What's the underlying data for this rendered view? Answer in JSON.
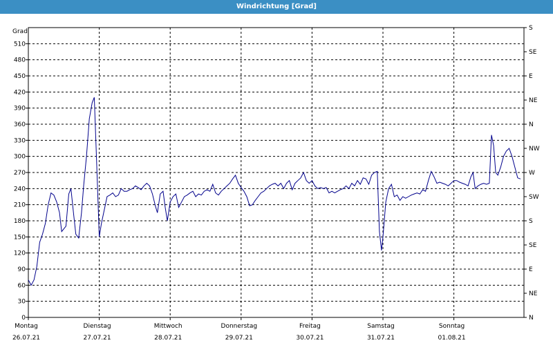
{
  "chart_data": {
    "type": "line",
    "title": "Windrichtung [Grad]",
    "ylabel": "Grad",
    "ylim": [
      0,
      540
    ],
    "yticks": [
      0,
      30,
      60,
      90,
      120,
      150,
      180,
      210,
      240,
      270,
      300,
      330,
      360,
      390,
      420,
      450,
      480,
      510
    ],
    "y2ticks": [
      {
        "value": 0,
        "label": "N"
      },
      {
        "value": 45,
        "label": "NE"
      },
      {
        "value": 90,
        "label": "E"
      },
      {
        "value": 135,
        "label": "SE"
      },
      {
        "value": 180,
        "label": "S"
      },
      {
        "value": 225,
        "label": "SW"
      },
      {
        "value": 270,
        "label": "W"
      },
      {
        "value": 315,
        "label": "NW"
      },
      {
        "value": 360,
        "label": "N"
      },
      {
        "value": 405,
        "label": "NE"
      },
      {
        "value": 450,
        "label": "E"
      },
      {
        "value": 495,
        "label": "SE"
      },
      {
        "value": 540,
        "label": "S"
      }
    ],
    "xlim": [
      0,
      7
    ],
    "xticks": [
      {
        "day": "Montag",
        "date": "26.07.21"
      },
      {
        "day": "Dienstag",
        "date": "27.07.21"
      },
      {
        "day": "Mittwoch",
        "date": "28.07.21"
      },
      {
        "day": "Donnerstag",
        "date": "29.07.21"
      },
      {
        "day": "Freitag",
        "date": "30.07.21"
      },
      {
        "day": "Samstag",
        "date": "31.07.21"
      },
      {
        "day": "Sonntag",
        "date": "01.08.21"
      }
    ],
    "grid": true,
    "line_color": "#00008b",
    "series": [
      {
        "points": [
          [
            0.0,
            70
          ],
          [
            0.04,
            60
          ],
          [
            0.08,
            70
          ],
          [
            0.12,
            95
          ],
          [
            0.16,
            140
          ],
          [
            0.2,
            155
          ],
          [
            0.24,
            175
          ],
          [
            0.28,
            210
          ],
          [
            0.32,
            232
          ],
          [
            0.36,
            228
          ],
          [
            0.4,
            215
          ],
          [
            0.44,
            195
          ],
          [
            0.47,
            160
          ],
          [
            0.5,
            165
          ],
          [
            0.53,
            170
          ],
          [
            0.57,
            230
          ],
          [
            0.6,
            240
          ],
          [
            0.64,
            190
          ],
          [
            0.67,
            155
          ],
          [
            0.71,
            148
          ],
          [
            0.75,
            195
          ],
          [
            0.78,
            245
          ],
          [
            0.82,
            300
          ],
          [
            0.86,
            370
          ],
          [
            0.9,
            400
          ],
          [
            0.93,
            410
          ],
          [
            0.96,
            300
          ],
          [
            1.0,
            150
          ],
          [
            1.03,
            175
          ],
          [
            1.07,
            200
          ],
          [
            1.11,
            225
          ],
          [
            1.15,
            228
          ],
          [
            1.19,
            232
          ],
          [
            1.23,
            225
          ],
          [
            1.27,
            228
          ],
          [
            1.31,
            240
          ],
          [
            1.35,
            235
          ],
          [
            1.39,
            235
          ],
          [
            1.43,
            238
          ],
          [
            1.47,
            240
          ],
          [
            1.51,
            245
          ],
          [
            1.55,
            242
          ],
          [
            1.59,
            238
          ],
          [
            1.63,
            245
          ],
          [
            1.67,
            250
          ],
          [
            1.71,
            245
          ],
          [
            1.75,
            230
          ],
          [
            1.79,
            208
          ],
          [
            1.82,
            195
          ],
          [
            1.86,
            230
          ],
          [
            1.9,
            235
          ],
          [
            1.93,
            205
          ],
          [
            1.96,
            180
          ],
          [
            2.0,
            215
          ],
          [
            2.04,
            225
          ],
          [
            2.08,
            230
          ],
          [
            2.12,
            205
          ],
          [
            2.16,
            215
          ],
          [
            2.2,
            225
          ],
          [
            2.24,
            228
          ],
          [
            2.28,
            232
          ],
          [
            2.32,
            235
          ],
          [
            2.36,
            225
          ],
          [
            2.4,
            230
          ],
          [
            2.44,
            228
          ],
          [
            2.48,
            235
          ],
          [
            2.52,
            238
          ],
          [
            2.56,
            235
          ],
          [
            2.6,
            248
          ],
          [
            2.64,
            232
          ],
          [
            2.68,
            228
          ],
          [
            2.72,
            235
          ],
          [
            2.76,
            240
          ],
          [
            2.8,
            245
          ],
          [
            2.84,
            250
          ],
          [
            2.88,
            258
          ],
          [
            2.92,
            265
          ],
          [
            2.96,
            250
          ],
          [
            3.0,
            242
          ],
          [
            3.04,
            235
          ],
          [
            3.08,
            225
          ],
          [
            3.12,
            208
          ],
          [
            3.16,
            210
          ],
          [
            3.2,
            218
          ],
          [
            3.24,
            225
          ],
          [
            3.28,
            232
          ],
          [
            3.32,
            235
          ],
          [
            3.36,
            240
          ],
          [
            3.4,
            245
          ],
          [
            3.44,
            248
          ],
          [
            3.48,
            250
          ],
          [
            3.52,
            245
          ],
          [
            3.56,
            250
          ],
          [
            3.6,
            240
          ],
          [
            3.64,
            250
          ],
          [
            3.68,
            255
          ],
          [
            3.72,
            238
          ],
          [
            3.76,
            250
          ],
          [
            3.8,
            255
          ],
          [
            3.84,
            260
          ],
          [
            3.88,
            270
          ],
          [
            3.92,
            255
          ],
          [
            3.96,
            250
          ],
          [
            4.0,
            255
          ],
          [
            4.04,
            245
          ],
          [
            4.08,
            240
          ],
          [
            4.12,
            242
          ],
          [
            4.16,
            240
          ],
          [
            4.2,
            242
          ],
          [
            4.24,
            232
          ],
          [
            4.28,
            235
          ],
          [
            4.32,
            232
          ],
          [
            4.36,
            235
          ],
          [
            4.4,
            238
          ],
          [
            4.44,
            240
          ],
          [
            4.48,
            245
          ],
          [
            4.52,
            240
          ],
          [
            4.56,
            250
          ],
          [
            4.6,
            245
          ],
          [
            4.64,
            255
          ],
          [
            4.68,
            248
          ],
          [
            4.72,
            260
          ],
          [
            4.76,
            258
          ],
          [
            4.8,
            248
          ],
          [
            4.84,
            265
          ],
          [
            4.88,
            270
          ],
          [
            4.92,
            272
          ],
          [
            4.95,
            160
          ],
          [
            4.98,
            125
          ],
          [
            5.0,
            150
          ],
          [
            5.04,
            215
          ],
          [
            5.08,
            240
          ],
          [
            5.12,
            248
          ],
          [
            5.16,
            225
          ],
          [
            5.2,
            228
          ],
          [
            5.24,
            218
          ],
          [
            5.28,
            225
          ],
          [
            5.32,
            222
          ],
          [
            5.36,
            225
          ],
          [
            5.4,
            228
          ],
          [
            5.44,
            230
          ],
          [
            5.48,
            232
          ],
          [
            5.52,
            230
          ],
          [
            5.56,
            238
          ],
          [
            5.6,
            235
          ],
          [
            5.64,
            255
          ],
          [
            5.68,
            272
          ],
          [
            5.72,
            262
          ],
          [
            5.76,
            250
          ],
          [
            5.8,
            252
          ],
          [
            5.84,
            250
          ],
          [
            5.88,
            248
          ],
          [
            5.92,
            245
          ],
          [
            5.96,
            250
          ],
          [
            6.0,
            255
          ],
          [
            6.04,
            255
          ],
          [
            6.08,
            252
          ],
          [
            6.12,
            250
          ],
          [
            6.16,
            248
          ],
          [
            6.2,
            245
          ],
          [
            6.24,
            262
          ],
          [
            6.27,
            270
          ],
          [
            6.3,
            240
          ],
          [
            6.34,
            245
          ],
          [
            6.38,
            248
          ],
          [
            6.42,
            250
          ],
          [
            6.46,
            248
          ],
          [
            6.5,
            250
          ],
          [
            6.53,
            340
          ],
          [
            6.56,
            320
          ],
          [
            6.59,
            270
          ],
          [
            6.62,
            265
          ],
          [
            6.66,
            280
          ],
          [
            6.7,
            300
          ],
          [
            6.74,
            310
          ],
          [
            6.78,
            315
          ],
          [
            6.82,
            300
          ],
          [
            6.86,
            280
          ],
          [
            6.9,
            260
          ],
          [
            6.94,
            258
          ]
        ]
      }
    ]
  }
}
